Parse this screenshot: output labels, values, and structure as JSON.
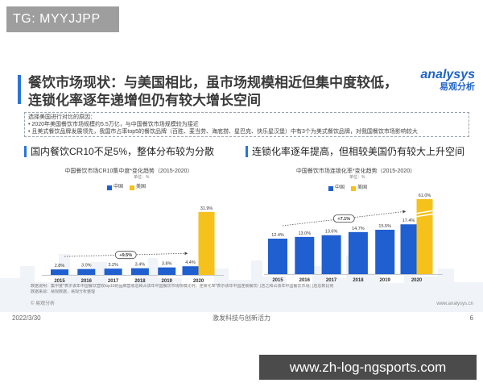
{
  "watermark_top": "TG: MYYJJPP",
  "watermark_bottom": "www.zh-log-ngsports.com",
  "colors": {
    "accent": "#2a74db"
  },
  "slide": {
    "title_line1": "餐饮市场现状：与美国相比，虽市场规模相近但集中度较低，",
    "title_line2": "连锁化率逐年递增但仍有较大增长空间",
    "logo": {
      "brand": "analysys",
      "name_cn": "易观分析"
    },
    "reason_box": {
      "heading": "选择美国进行对比的原因：",
      "bullets": [
        "2020年美国餐饮市场规模约5.5万亿，与中国餐饮市场规模较为接近",
        "且美式餐饮品牌发展领先，我国市占率top5的餐饮品牌（百胜、麦当劳、海底捞、星巴克、快乐星汉堡）中有3个为美式餐饮品牌，对我国餐饮市场影响较大"
      ]
    },
    "left_section_title": "国内餐饮CR10不足5%，整体分布较为分散",
    "right_section_title": "连锁化率逐年提高，但相较美国仍有较大上升空间",
    "notes": {
      "data_note": "数据说明：集中度*表示该年中国餐饮营收top10的品牌营收总和占该年中国餐饮市场规模比例；连锁化率*表示该年中国连锁餐饮门店之和占该年中国餐饮市场门店总数比例",
      "data_source": "数据来源：易观数据，易观分析整理"
    },
    "copyright": "© 易观分析",
    "website": "www.analysys.cn",
    "footer": {
      "date": "2022/3/30",
      "slogan": "激发科技与创新活力",
      "page_number": "6"
    }
  },
  "chart_data": [
    {
      "type": "bar",
      "title": "中国餐饮市场CR10集中度*变化趋势（2015-2020）",
      "unit_label": "单位：%",
      "categories": [
        "2015",
        "2016",
        "2017",
        "2018",
        "2019",
        "2020"
      ],
      "series": [
        {
          "name": "中国",
          "color": "#1f5fd0",
          "values": [
            2.8,
            3.0,
            3.2,
            3.4,
            3.8,
            4.4
          ],
          "labels": [
            "2.8%",
            "3.0%",
            "3.2%",
            "3.4%",
            "3.8%",
            "4.4%"
          ]
        },
        {
          "name": "美国",
          "color": "#f7c11c",
          "values": [
            null,
            null,
            null,
            null,
            null,
            31.9
          ],
          "labels": [
            null,
            null,
            null,
            null,
            null,
            "31.9%"
          ]
        }
      ],
      "annotation": {
        "text": "+9.5%",
        "from": "2015",
        "to": "2020"
      },
      "legend": "top-center",
      "grid": false,
      "y_axis_break": false
    },
    {
      "type": "bar",
      "title": "中国餐饮市场连锁化率*变化趋势（2015-2020）",
      "unit_label": "单位：%",
      "categories": [
        "2015",
        "2016",
        "2017",
        "2018",
        "2019",
        "2020"
      ],
      "series": [
        {
          "name": "中国",
          "color": "#1f5fd0",
          "values": [
            12.4,
            13.0,
            13.6,
            14.7,
            15.5,
            17.4
          ],
          "labels": [
            "12.4%",
            "13.0%",
            "13.6%",
            "14.7%",
            "15.5%",
            "17.4%"
          ]
        },
        {
          "name": "美国",
          "color": "#f7c11c",
          "values": [
            null,
            null,
            null,
            null,
            null,
            61.0
          ],
          "labels": [
            null,
            null,
            null,
            null,
            null,
            "61.0%"
          ]
        }
      ],
      "annotation": {
        "text": "+7.1%",
        "from": "2015",
        "to": "2020"
      },
      "legend": "top-center",
      "grid": false,
      "y_axis_break": true
    }
  ]
}
